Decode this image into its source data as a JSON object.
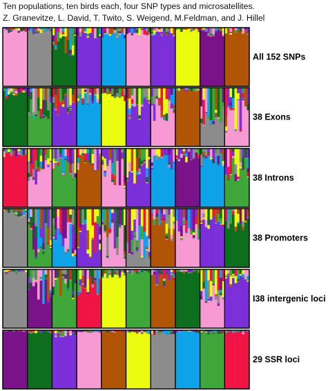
{
  "caption": {
    "line1": "Ten populations, ten birds each, four SNP types and microsatellites.",
    "line2": "Z. Granevitze, L. David, T. Twito, S. Weigend, M.Feldman, and J. Hillel"
  },
  "palette": {
    "pink": "#f79ad4",
    "gray": "#8c8c8c",
    "green": "#0d6e1e",
    "purple": "#7b2fd9",
    "blue": "#0ea2e8",
    "brown": "#b05505",
    "yellow": "#ecfc10",
    "darkpurple": "#7a1389",
    "red": "#f01444",
    "lightgreen": "#3fa63a"
  },
  "chart_data": {
    "type": "structure-barplot",
    "populations_per_panel": 10,
    "individuals_per_population": 10,
    "panels": [
      {
        "label": "All 152 SNPs",
        "dominant": [
          "pink",
          "gray",
          "green",
          "purple",
          "blue",
          "pink",
          "purple",
          "yellow",
          "darkpurple",
          "brown"
        ],
        "admixture": [
          0.06,
          0.08,
          0.35,
          0.12,
          0.12,
          0.1,
          0.1,
          0.05,
          0.1,
          0.08
        ]
      },
      {
        "label": "38 Exons",
        "dominant": [
          "green",
          "lightgreen",
          "purple",
          "blue",
          "yellow",
          "purple",
          "pink",
          "brown",
          "gray",
          "pink"
        ],
        "admixture": [
          0.12,
          0.45,
          0.3,
          0.2,
          0.15,
          0.35,
          0.4,
          0.05,
          0.45,
          0.5
        ]
      },
      {
        "label": "38 Introns",
        "dominant": [
          "red",
          "pink",
          "lightgreen",
          "brown",
          "pink",
          "purple",
          "blue",
          "darkpurple",
          "blue",
          "lightgreen"
        ],
        "admixture": [
          0.1,
          0.4,
          0.35,
          0.25,
          0.45,
          0.4,
          0.25,
          0.15,
          0.2,
          0.35
        ]
      },
      {
        "label": "38 Promoters",
        "dominant": [
          "gray",
          "lightgreen",
          "blue",
          "purple",
          "pink",
          "gray",
          "brown",
          "pink",
          "purple",
          "green"
        ],
        "admixture": [
          0.1,
          0.6,
          0.55,
          0.6,
          0.55,
          0.55,
          0.35,
          0.4,
          0.25,
          0.25
        ]
      },
      {
        "label": "I38 intergenic loci",
        "dominant": [
          "gray",
          "darkpurple",
          "lightgreen",
          "red",
          "yellow",
          "lightgreen",
          "brown",
          "green",
          "pink",
          "purple"
        ],
        "admixture": [
          0.05,
          0.4,
          0.35,
          0.3,
          0.1,
          0.05,
          0.2,
          0.05,
          0.4,
          0.25
        ]
      },
      {
        "label": "29 SSR loci",
        "dominant": [
          "darkpurple",
          "green",
          "purple",
          "pink",
          "brown",
          "yellow",
          "gray",
          "blue",
          "lightgreen",
          "red"
        ],
        "admixture": [
          0.02,
          0.04,
          0.08,
          0.05,
          0.03,
          0.05,
          0.06,
          0.04,
          0.05,
          0.05
        ]
      }
    ]
  }
}
